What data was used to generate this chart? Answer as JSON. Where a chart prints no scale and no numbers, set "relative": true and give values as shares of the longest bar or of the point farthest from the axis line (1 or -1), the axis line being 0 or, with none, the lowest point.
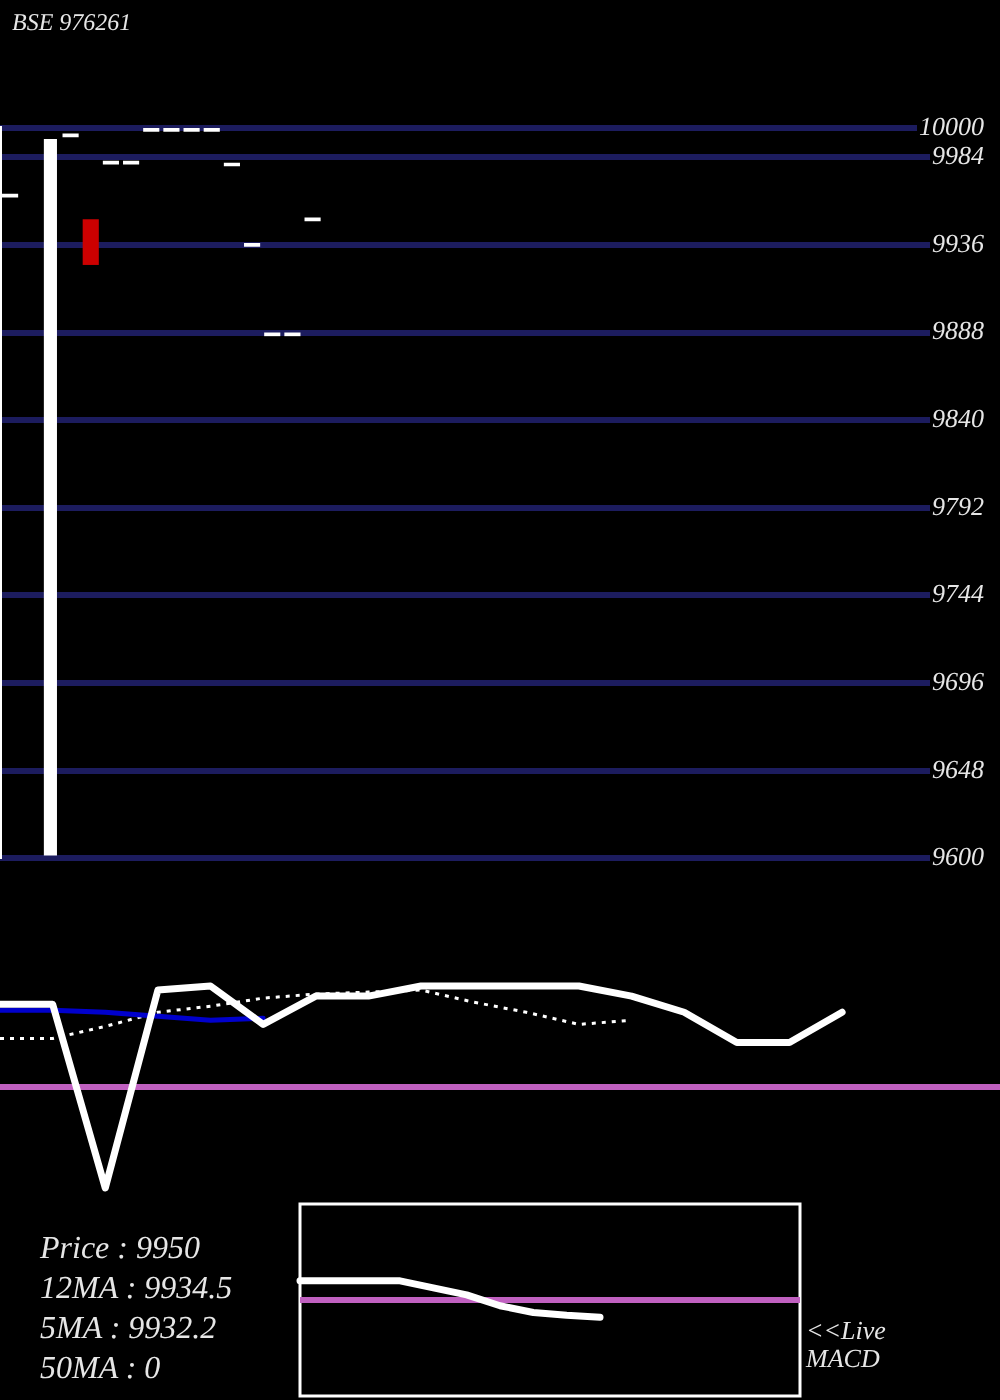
{
  "chart_data": [
    {
      "type": "candlestick",
      "title": "BSE 976261",
      "categories": [
        null,
        null,
        null,
        null,
        null,
        null,
        null,
        null,
        null,
        null,
        null,
        null,
        null,
        null,
        null,
        null,
        null,
        null,
        null,
        null,
        null,
        null,
        null,
        null,
        null,
        null,
        null,
        null,
        null,
        null,
        null,
        null,
        null,
        null,
        null,
        null,
        null,
        null,
        null,
        null,
        null,
        null,
        null,
        null,
        null,
        null,
        null,
        null
      ],
      "ohlc": [
        [
          9962,
          9964,
          9962,
          9964
        ],
        null,
        null,
        [
          9995,
          9997,
          9995,
          9997
        ],
        [
          9950,
          9950,
          9925,
          9925
        ],
        [
          9980,
          9982,
          9980,
          9982
        ],
        [
          9980,
          9982,
          9980,
          9982
        ],
        [
          9998,
          10000,
          9998,
          10000
        ],
        [
          9998,
          10000,
          9998,
          10000
        ],
        [
          9998,
          10000,
          9998,
          10000
        ],
        [
          9998,
          10000,
          9998,
          10000
        ],
        [
          9979,
          9981,
          9979,
          9981
        ],
        [
          9935,
          9937,
          9935,
          9937
        ],
        [
          9886,
          9888,
          9886,
          9888
        ],
        [
          9886,
          9888,
          9886,
          9888
        ],
        [
          9949,
          9951,
          9949,
          9951
        ],
        null,
        null,
        null,
        null,
        null,
        null,
        null,
        null,
        null,
        null,
        null,
        null,
        null,
        null,
        null,
        null,
        null,
        null,
        null,
        null,
        null,
        null,
        null,
        null,
        null,
        null,
        null,
        null,
        null,
        null,
        null,
        null
      ],
      "colors": [
        "#ffffff",
        null,
        null,
        "#ffffff",
        "#cc0000",
        "#ffffff",
        "#ffffff",
        "#ffffff",
        "#ffffff",
        "#ffffff",
        "#ffffff",
        "#ffffff",
        "#ffffff",
        "#ffffff",
        "#ffffff",
        "#ffffff",
        null,
        null,
        null,
        null,
        null,
        null,
        null,
        null,
        null,
        null,
        null,
        null,
        null,
        null,
        null,
        null,
        null,
        null,
        null,
        null,
        null,
        null,
        null,
        null,
        null,
        null,
        null,
        null,
        null,
        null,
        null,
        null
      ],
      "series": [
        {
          "type": "bar",
          "color": "#ffffff",
          "values": [
            null,
            null,
            9994,
            null,
            null,
            null,
            null,
            null,
            null,
            null,
            null,
            null,
            null,
            null,
            null,
            null,
            null,
            null,
            null,
            null,
            null,
            null,
            null,
            null,
            null,
            null,
            null,
            null,
            null,
            null,
            null,
            null,
            null,
            null,
            null,
            null,
            null,
            null,
            null,
            null,
            null,
            null,
            null,
            null,
            null,
            null,
            null,
            null
          ]
        }
      ],
      "ylim": [
        9600,
        10000
      ],
      "yticks": [
        9600,
        9648,
        9696,
        9744,
        9792,
        9840,
        9888,
        9936,
        9984,
        10000
      ],
      "grid": "y"
    },
    {
      "type": "line",
      "relative": true,
      "categories": [
        null,
        null,
        null,
        null,
        null,
        null,
        null,
        null,
        null,
        null,
        null,
        null,
        null,
        null,
        null,
        null,
        null,
        null,
        null,
        null
      ],
      "series": [
        {
          "color": "#ffffff",
          "values": [
            0.91,
            0.91,
            0,
            0.98,
            1,
            0.81,
            0.95,
            0.95,
            1,
            1,
            1,
            1,
            0.95,
            0.87,
            0.72,
            0.72,
            0.87,
            null,
            null,
            null
          ]
        },
        {
          "color": "#0000cc",
          "values": [
            0.88,
            0.88,
            0.87,
            0.85,
            0.83,
            0.84,
            null,
            null,
            null,
            null,
            null,
            null,
            null,
            null,
            null,
            null,
            null,
            null,
            null,
            null
          ]
        },
        {
          "color": "#ffffff",
          "line_style": "dotted",
          "values": [
            0.74,
            0.74,
            0.8,
            0.87,
            0.9,
            0.94,
            0.96,
            0.97,
            0.98,
            0.92,
            0.87,
            0.81,
            0.83,
            null,
            null,
            null,
            null,
            null,
            null,
            null
          ]
        }
      ],
      "ref_lines": [
        {
          "axis": "y",
          "value": 0.5,
          "color": "#c060c0"
        }
      ]
    },
    {
      "type": "line",
      "relative": true,
      "title": "<<Live MACD",
      "categories": [
        null,
        null,
        null,
        null,
        null,
        null,
        null,
        null,
        null,
        null,
        null,
        null,
        null,
        null,
        null,
        null
      ],
      "series": [
        {
          "color": "#ffffff",
          "values": [
            1,
            1,
            1,
            1,
            0.63,
            0.27,
            -0.3,
            -0.65,
            -0.8,
            -0.9,
            null,
            null,
            null,
            null,
            null,
            null
          ]
        }
      ],
      "ref_lines": [
        {
          "axis": "y",
          "value": 0,
          "color": "#c060c0"
        }
      ],
      "annotations": [
        "Price : 9950",
        "12MA : 9934.5",
        "5MA : 9932.2",
        "50MA : 0"
      ]
    }
  ]
}
